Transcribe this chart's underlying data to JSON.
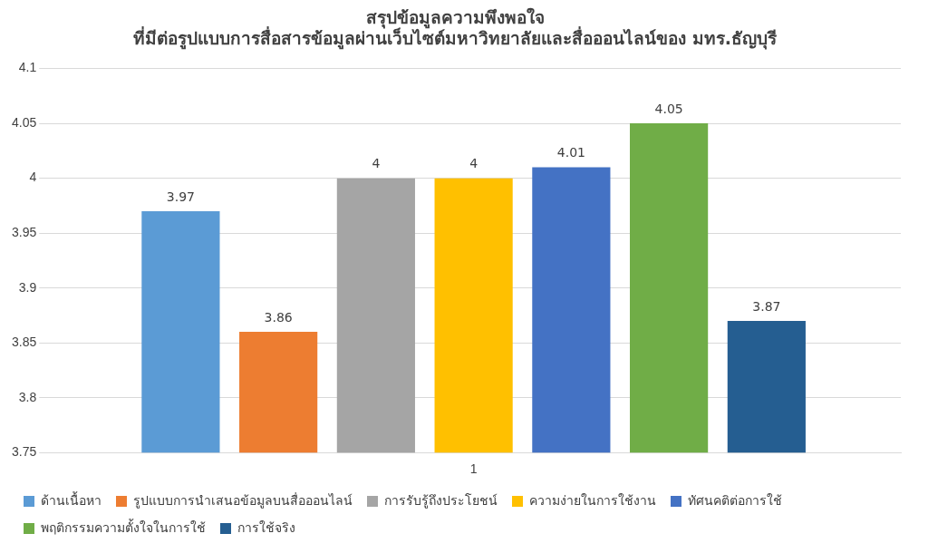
{
  "chart_data": {
    "type": "bar",
    "title": "สรุปข้อมูลความพึงพอใจ",
    "subtitle": "ที่มีต่อรูปแบบการสื่อสารข้อมูลผ่านเว็บไซต์มหาวิทยาลัยและสื่อออนไลน์ของ มทร.ธัญบุรี",
    "categories": [
      "1"
    ],
    "series": [
      {
        "name": "ด้านเนื้อหา",
        "color": "#5b9bd5",
        "values": [
          3.97
        ]
      },
      {
        "name": "รูปแบบการนำเสนอข้อมูลบนสื่อออนไลน์",
        "color": "#ed7d31",
        "values": [
          3.86
        ]
      },
      {
        "name": "การรับรู้ถึงประโยชน์",
        "color": "#a5a5a5",
        "values": [
          4
        ]
      },
      {
        "name": "ความง่ายในการใช้งาน",
        "color": "#ffc000",
        "values": [
          4
        ]
      },
      {
        "name": "ทัศนคติต่อการใช้",
        "color": "#4472c4",
        "values": [
          4.01
        ]
      },
      {
        "name": "พฤติกรรมความตั้งใจในการใช้",
        "color": "#70ad47",
        "values": [
          4.05
        ]
      },
      {
        "name": "การใช้จริง",
        "color": "#255e91",
        "values": [
          3.87
        ]
      }
    ],
    "ylim": [
      3.75,
      4.1
    ],
    "yticks": [
      3.75,
      3.8,
      3.85,
      3.9,
      3.95,
      4,
      4.05,
      4.1
    ],
    "grid": "y",
    "legend": "bottom",
    "data_labels": true
  }
}
